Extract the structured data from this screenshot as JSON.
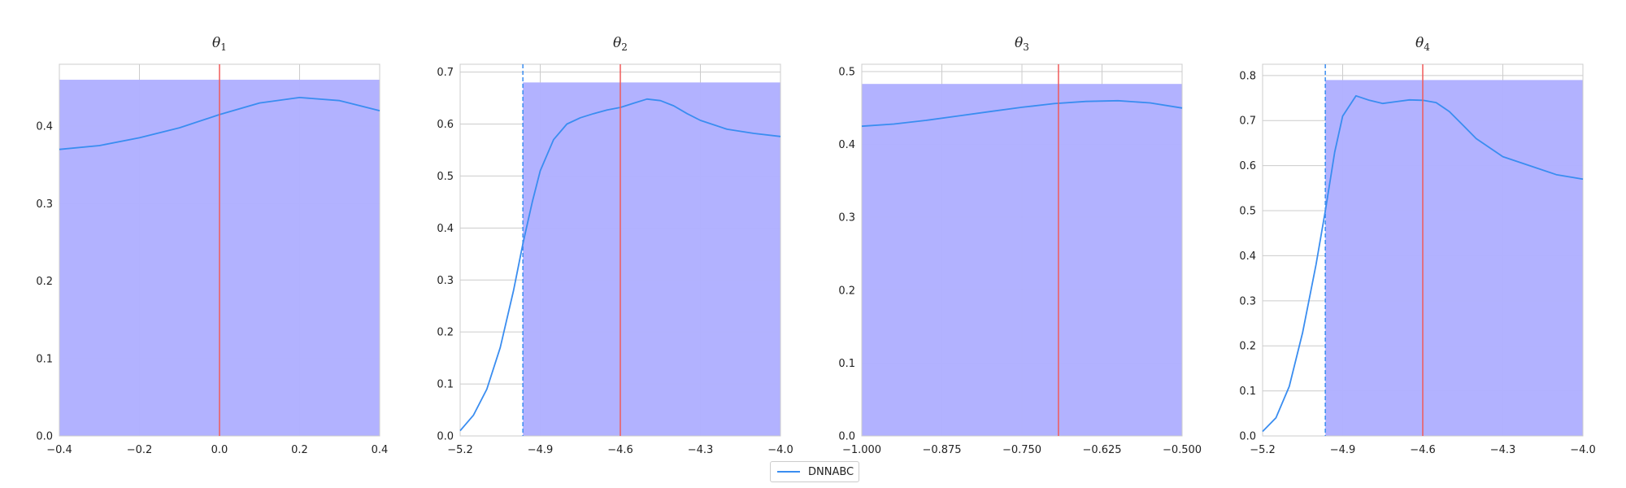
{
  "legend": {
    "label": "DNNABC",
    "placement": "bottom-center"
  },
  "colors": {
    "fill": "#b0b0ff",
    "kde_line": "#3a8df0",
    "true_value_line": "#f05a5a",
    "bound_line": "#3a8df0",
    "grid": "#cccccc"
  },
  "chart_data": [
    {
      "type": "line",
      "title_base": "θ",
      "title_sub": "1",
      "xlim": [
        -0.4,
        0.4
      ],
      "ylim": [
        0,
        0.48
      ],
      "xticks": [
        -0.4,
        -0.2,
        0.0,
        0.2,
        0.4
      ],
      "xtick_labels": [
        "−0.4",
        "−0.2",
        "0.0",
        "0.2",
        "0.4"
      ],
      "yticks": [
        0,
        0.1,
        0.2,
        0.3,
        0.4
      ],
      "ytick_labels": [
        "0.0",
        "0.1",
        "0.2",
        "0.3",
        "0.4"
      ],
      "fill": {
        "from": -0.4,
        "to": 0.4,
        "height": 0.46
      },
      "true_value": 0.0,
      "bound_line": null,
      "series": [
        {
          "x": [
            -0.4,
            -0.3,
            -0.2,
            -0.1,
            0.0,
            0.1,
            0.2,
            0.3,
            0.4
          ],
          "y": [
            0.37,
            0.375,
            0.385,
            0.398,
            0.415,
            0.43,
            0.437,
            0.433,
            0.42
          ]
        }
      ]
    },
    {
      "type": "line",
      "title_base": "θ",
      "title_sub": "2",
      "xlim": [
        -5.2,
        -4.0
      ],
      "ylim": [
        0,
        0.715
      ],
      "xticks": [
        -5.2,
        -4.9,
        -4.6,
        -4.3,
        -4.0
      ],
      "xtick_labels": [
        "−5.2",
        "−4.9",
        "−4.6",
        "−4.3",
        "−4.0"
      ],
      "yticks": [
        0,
        0.1,
        0.2,
        0.3,
        0.4,
        0.5,
        0.6,
        0.7
      ],
      "ytick_labels": [
        "0.0",
        "0.1",
        "0.2",
        "0.3",
        "0.4",
        "0.5",
        "0.6",
        "0.7"
      ],
      "fill": {
        "from": -4.965,
        "to": -4.0,
        "height": 0.68
      },
      "true_value": -4.6,
      "bound_line": -4.965,
      "series": [
        {
          "x": [
            -5.2,
            -5.15,
            -5.1,
            -5.05,
            -5.0,
            -4.965,
            -4.93,
            -4.9,
            -4.85,
            -4.8,
            -4.75,
            -4.7,
            -4.65,
            -4.6,
            -4.55,
            -4.5,
            -4.45,
            -4.4,
            -4.35,
            -4.3,
            -4.2,
            -4.1,
            -4.0
          ],
          "y": [
            0.01,
            0.04,
            0.09,
            0.17,
            0.28,
            0.37,
            0.45,
            0.51,
            0.57,
            0.6,
            0.612,
            0.62,
            0.627,
            0.632,
            0.64,
            0.648,
            0.645,
            0.635,
            0.62,
            0.607,
            0.59,
            0.582,
            0.576
          ]
        }
      ]
    },
    {
      "type": "line",
      "title_base": "θ",
      "title_sub": "3",
      "xlim": [
        -1.0,
        -0.5
      ],
      "ylim": [
        0,
        0.51
      ],
      "xticks": [
        -1.0,
        -0.875,
        -0.75,
        -0.625,
        -0.5
      ],
      "xtick_labels": [
        "−1.000",
        "−0.875",
        "−0.750",
        "−0.625",
        "−0.500"
      ],
      "yticks": [
        0,
        0.1,
        0.2,
        0.3,
        0.4,
        0.5
      ],
      "ytick_labels": [
        "0.0",
        "0.1",
        "0.2",
        "0.3",
        "0.4",
        "0.5"
      ],
      "fill": {
        "from": -1.0,
        "to": -0.5,
        "height": 0.483
      },
      "true_value": -0.693,
      "bound_line": null,
      "series": [
        {
          "x": [
            -1.0,
            -0.95,
            -0.9,
            -0.85,
            -0.8,
            -0.75,
            -0.7,
            -0.65,
            -0.6,
            -0.55,
            -0.5
          ],
          "y": [
            0.425,
            0.428,
            0.433,
            0.439,
            0.445,
            0.451,
            0.456,
            0.459,
            0.46,
            0.457,
            0.45
          ]
        }
      ]
    },
    {
      "type": "line",
      "title_base": "θ",
      "title_sub": "4",
      "xlim": [
        -5.2,
        -4.0
      ],
      "ylim": [
        0,
        0.825
      ],
      "xticks": [
        -5.2,
        -4.9,
        -4.6,
        -4.3,
        -4.0
      ],
      "xtick_labels": [
        "−5.2",
        "−4.9",
        "−4.6",
        "−4.3",
        "−4.0"
      ],
      "yticks": [
        0,
        0.1,
        0.2,
        0.3,
        0.4,
        0.5,
        0.6,
        0.7,
        0.8
      ],
      "ytick_labels": [
        "0.0",
        "0.1",
        "0.2",
        "0.3",
        "0.4",
        "0.5",
        "0.6",
        "0.7",
        "0.8"
      ],
      "fill": {
        "from": -4.965,
        "to": -4.0,
        "height": 0.79
      },
      "true_value": -4.6,
      "bound_line": -4.965,
      "series": [
        {
          "x": [
            -5.2,
            -5.15,
            -5.1,
            -5.05,
            -5.0,
            -4.965,
            -4.93,
            -4.9,
            -4.85,
            -4.8,
            -4.75,
            -4.7,
            -4.65,
            -4.6,
            -4.55,
            -4.5,
            -4.45,
            -4.4,
            -4.35,
            -4.3,
            -4.2,
            -4.1,
            -4.0
          ],
          "y": [
            0.01,
            0.04,
            0.11,
            0.23,
            0.38,
            0.5,
            0.63,
            0.71,
            0.755,
            0.745,
            0.738,
            0.742,
            0.746,
            0.745,
            0.74,
            0.72,
            0.69,
            0.66,
            0.64,
            0.62,
            0.6,
            0.58,
            0.57
          ]
        }
      ]
    }
  ]
}
